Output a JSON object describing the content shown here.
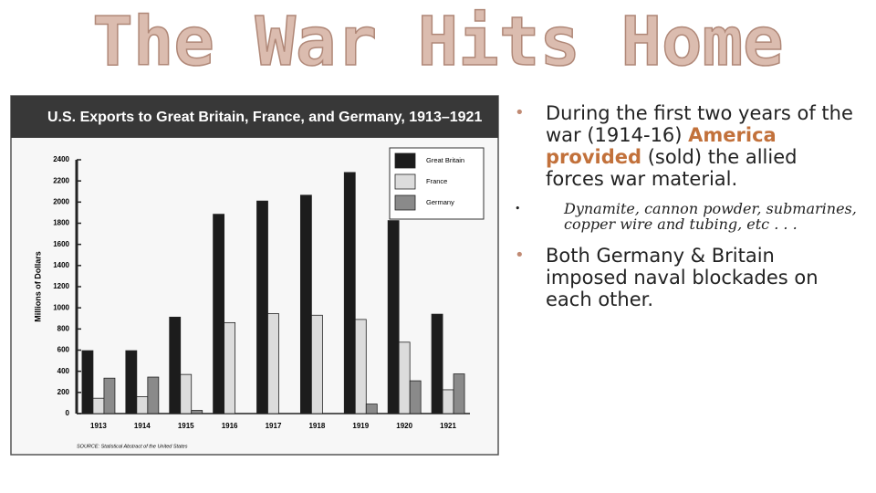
{
  "slide": {
    "title": "The War Hits Home",
    "bullets": [
      {
        "before": "During the first two years of the war (1914-16) ",
        "highlight": "America provided",
        "after": " (sold) the allied forces war material.",
        "sub_bullets": [
          "Dynamite, cannon powder, submarines, copper wire and tubing, etc . . ."
        ]
      },
      {
        "text": "Both Germany & Britain imposed naval blockades on each other."
      }
    ]
  },
  "chart_data": {
    "type": "bar",
    "title": "U.S. Exports to Great Britain, France, and Germany, 1913–1921",
    "y_label": "Millions of Dollars",
    "source": "SOURCE: Statistical Abstract of the United States",
    "categories": [
      "1913",
      "1914",
      "1915",
      "1916",
      "1917",
      "1918",
      "1919",
      "1920",
      "1921"
    ],
    "series": [
      {
        "name": "Great Britain",
        "color": "#1c1c1c",
        "values": [
          595,
          595,
          912,
          1885,
          2010,
          2065,
          2280,
          1825,
          940
        ]
      },
      {
        "name": "France",
        "color": "#dcdcdc",
        "values": [
          145,
          160,
          370,
          860,
          945,
          930,
          890,
          675,
          225
        ]
      },
      {
        "name": "Germany",
        "color": "#8a8a8a",
        "values": [
          335,
          345,
          30,
          0,
          0,
          0,
          90,
          310,
          375
        ]
      }
    ],
    "ylim": [
      0,
      2400
    ],
    "yticks": [
      0,
      200,
      400,
      600,
      800,
      1000,
      1200,
      1400,
      1600,
      1800,
      2000,
      2200,
      2400
    ],
    "legend": "top-right",
    "grid": false
  }
}
